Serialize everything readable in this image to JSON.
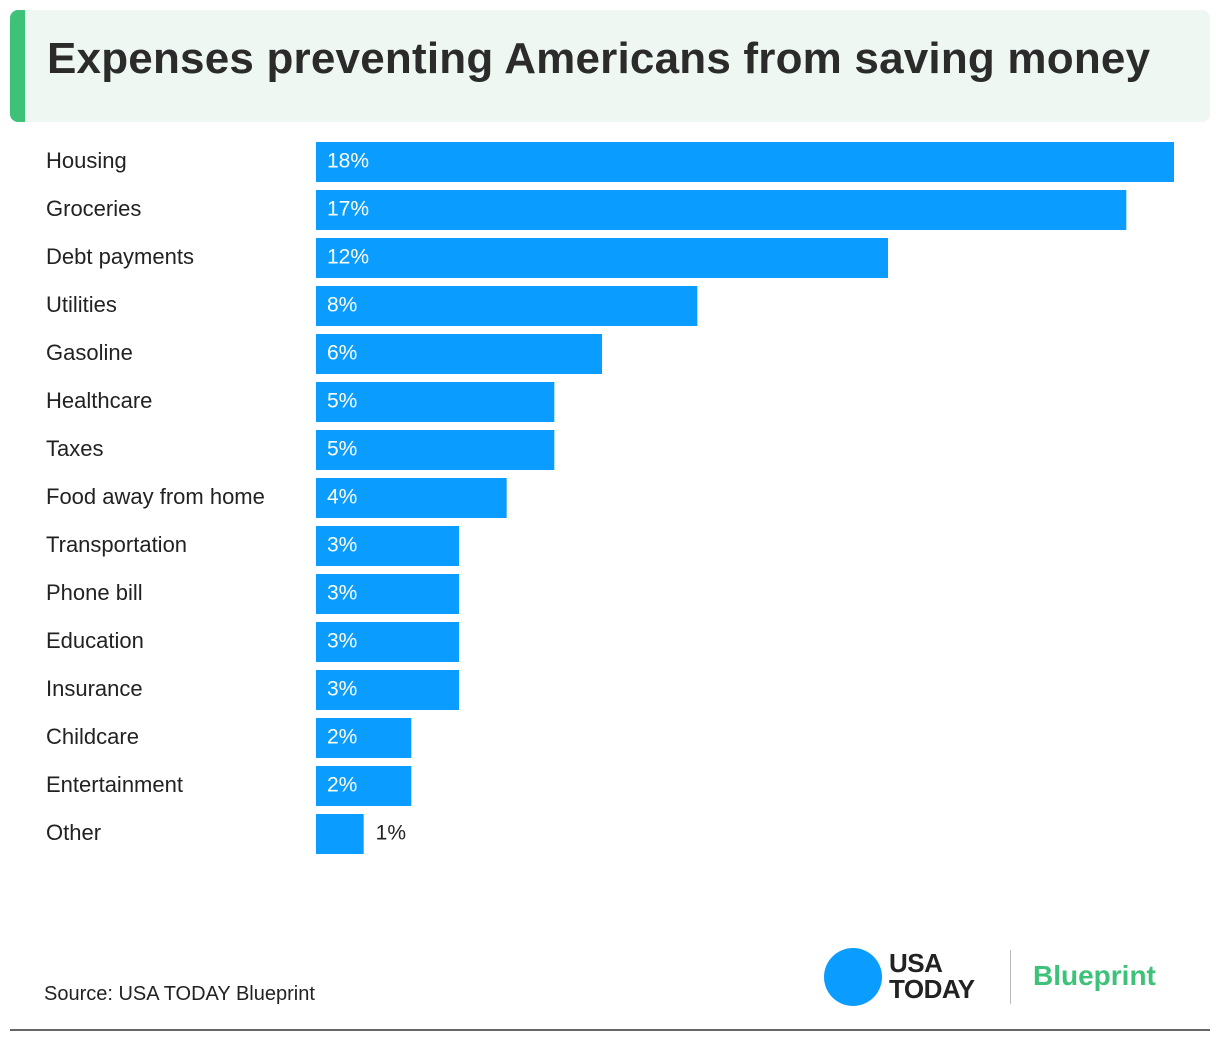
{
  "header": {
    "title": "Expenses preventing Americans from saving money"
  },
  "chart_data": {
    "type": "bar",
    "orientation": "horizontal",
    "title": "Expenses preventing Americans from saving money",
    "categories": [
      "Housing",
      "Groceries",
      "Debt payments",
      "Utilities",
      "Gasoline",
      "Healthcare",
      "Taxes",
      "Food away from home",
      "Transportation",
      "Phone bill",
      "Education",
      "Insurance",
      "Childcare",
      "Entertainment",
      "Other"
    ],
    "values": [
      18,
      17,
      12,
      8,
      6,
      5,
      5,
      4,
      3,
      3,
      3,
      3,
      2,
      2,
      1
    ],
    "value_labels": [
      "18%",
      "17%",
      "12%",
      "8%",
      "6%",
      "5%",
      "5%",
      "4%",
      "3%",
      "3%",
      "3%",
      "3%",
      "2%",
      "2%",
      "1%"
    ],
    "xlabel": "",
    "ylabel": "",
    "xlim": [
      0,
      18
    ],
    "grid": false,
    "legend": "none",
    "bar_color": "#0a9cff"
  },
  "footer": {
    "source": "Source: USA TODAY Blueprint",
    "logo_usa": "USA",
    "logo_today": "TODAY",
    "logo_blueprint": "Blueprint"
  },
  "colors": {
    "header_bg": "#eef7f1",
    "accent_green": "#3ec27a",
    "bar": "#0a9cff",
    "logo_circle": "#0a9cff",
    "text": "#222222"
  },
  "icons": {
    "logo_circle": "usa-today-circle-icon"
  }
}
